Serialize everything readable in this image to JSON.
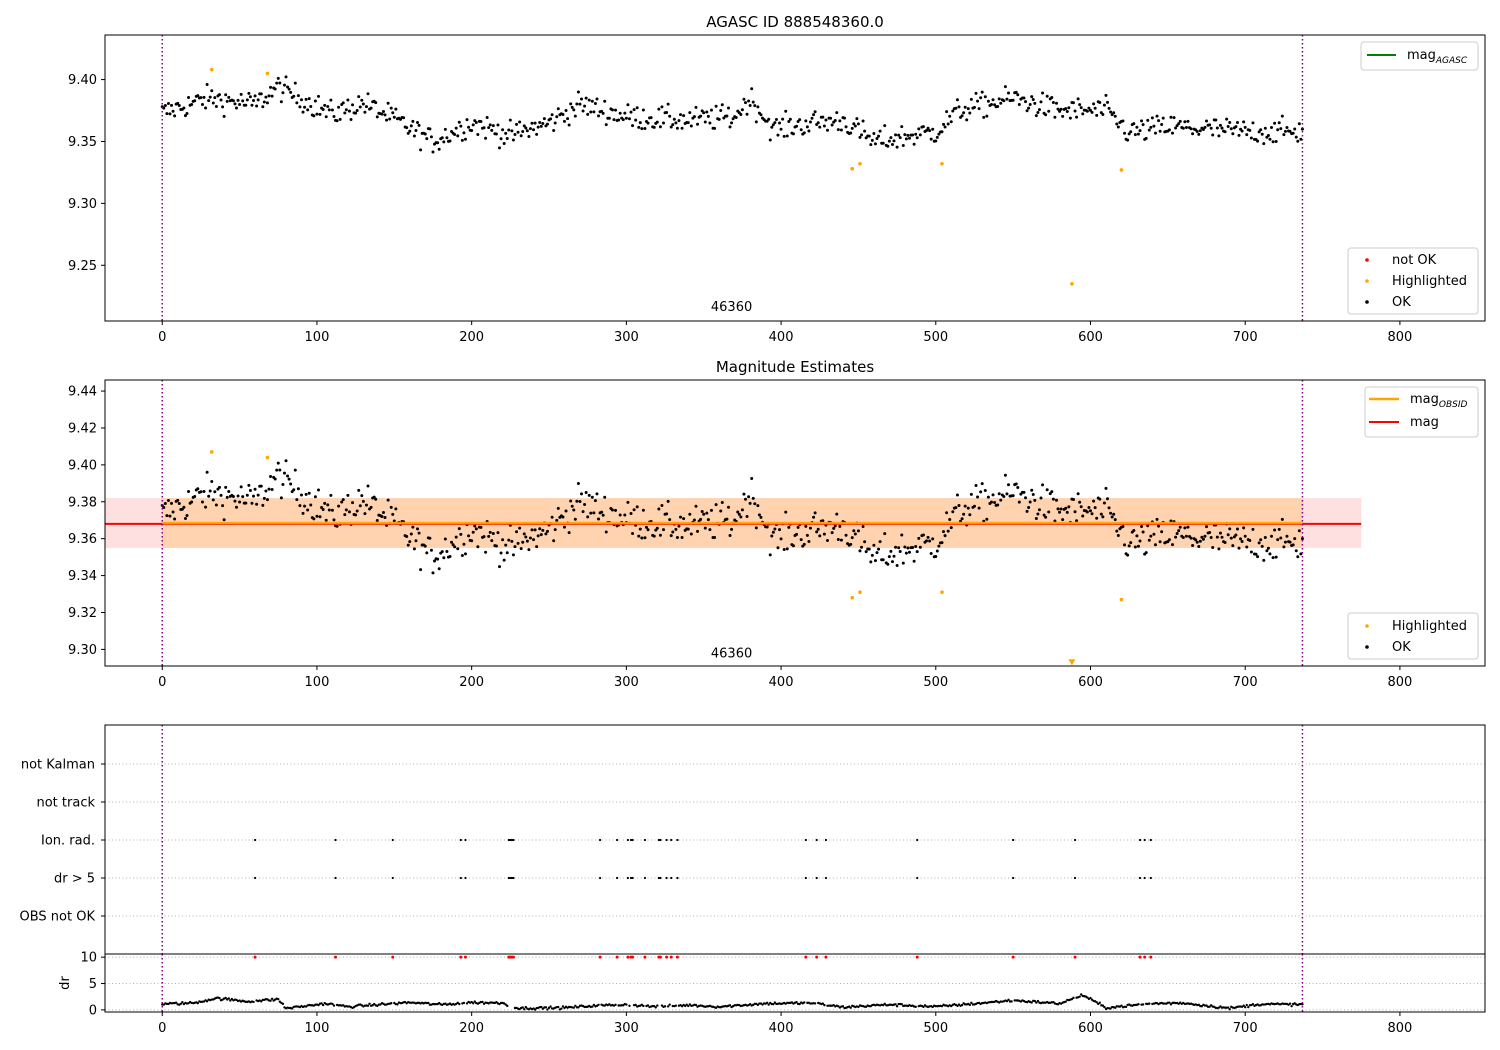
{
  "chart_data": [
    {
      "type": "scatter",
      "title": "AGASC ID 888548360.0",
      "xlim": [
        -37,
        855
      ],
      "ylim": [
        9.205,
        9.436
      ],
      "yticks": [
        9.25,
        9.3,
        9.35,
        9.4
      ],
      "ytick_labels": [
        "9.25",
        "9.30",
        "9.35",
        "9.40"
      ],
      "xticks": [
        0,
        100,
        200,
        300,
        400,
        500,
        600,
        700,
        800
      ],
      "xtick_labels": [
        "0",
        "100",
        "200",
        "300",
        "400",
        "500",
        "600",
        "700",
        "800"
      ],
      "vlines": [
        0,
        737
      ],
      "annotation": {
        "text": "46360",
        "x": 368,
        "y": 9.213
      },
      "legend_lines": [
        {
          "label": "mag",
          "sub": "AGASC",
          "color": "#008000"
        }
      ],
      "legend_points": [
        {
          "label": "not OK",
          "color": "#ff0000"
        },
        {
          "label": "Highlighted",
          "color": "#ffa500"
        },
        {
          "label": "OK",
          "color": "#000000"
        }
      ],
      "highlighted": {
        "x": [
          32,
          68,
          446,
          451,
          504,
          588,
          620
        ],
        "y": [
          9.408,
          9.405,
          9.328,
          9.332,
          9.332,
          9.235,
          9.327
        ]
      },
      "ok_baseline": {
        "knots_x": [
          0,
          30,
          60,
          75,
          110,
          130,
          150,
          175,
          200,
          225,
          250,
          270,
          300,
          340,
          370,
          380,
          395,
          420,
          440,
          460,
          500,
          515,
          550,
          580,
          610,
          625,
          650,
          700,
          737
        ],
        "knots_y": [
          9.373,
          9.385,
          9.38,
          9.394,
          9.372,
          9.381,
          9.368,
          9.35,
          9.365,
          9.355,
          9.365,
          9.38,
          9.37,
          9.367,
          9.37,
          9.385,
          9.36,
          9.365,
          9.367,
          9.35,
          9.358,
          9.375,
          9.385,
          9.375,
          9.375,
          9.357,
          9.362,
          9.358,
          9.358
        ],
        "spread": 0.009
      }
    },
    {
      "type": "scatter",
      "title": "Magnitude Estimates",
      "xlim": [
        -37,
        855
      ],
      "ylim": [
        9.291,
        9.446
      ],
      "yticks": [
        9.3,
        9.32,
        9.34,
        9.36,
        9.38,
        9.4,
        9.42,
        9.44
      ],
      "ytick_labels": [
        "9.30",
        "9.32",
        "9.34",
        "9.36",
        "9.38",
        "9.40",
        "9.42",
        "9.44"
      ],
      "xticks": [
        0,
        100,
        200,
        300,
        400,
        500,
        600,
        700,
        800
      ],
      "xtick_labels": [
        "0",
        "100",
        "200",
        "300",
        "400",
        "500",
        "600",
        "700",
        "800"
      ],
      "vlines": [
        0,
        737
      ],
      "annotation": {
        "text": "46360",
        "x": 368,
        "y": 9.2955
      },
      "mag": {
        "value": 9.368,
        "band": [
          9.355,
          9.382
        ],
        "x": [
          -37,
          775
        ],
        "color": "#ff0000"
      },
      "mag_obsid": {
        "value": 9.3685,
        "band": [
          9.355,
          9.382
        ],
        "x": [
          0,
          737
        ],
        "color": "#ffa500"
      },
      "legend_lines": [
        {
          "label": "mag",
          "sub": "OBSID",
          "color": "#ffa500"
        },
        {
          "label": "mag",
          "sub": "",
          "color": "#ff0000"
        }
      ],
      "legend_points": [
        {
          "label": "Highlighted",
          "color": "#ffa500"
        },
        {
          "label": "OK",
          "color": "#000000"
        }
      ],
      "highlighted": {
        "x": [
          32,
          68,
          446,
          451,
          504,
          620
        ],
        "y": [
          9.407,
          9.404,
          9.328,
          9.331,
          9.331,
          9.327
        ]
      },
      "offscale_marker": {
        "x": 588,
        "y": 9.293
      }
    },
    {
      "type": "scatter",
      "title": "",
      "xlim": [
        -37,
        855
      ],
      "categories": [
        "not Kalman",
        "not track",
        "Ion. rad.",
        "dr > 5",
        "OBS not OK"
      ],
      "flag_times": [
        60,
        112,
        149,
        193,
        196,
        224,
        225,
        226,
        227,
        283,
        294,
        301,
        303,
        304,
        312,
        321,
        322,
        326,
        329,
        333,
        416,
        423,
        429,
        488,
        550,
        590,
        632,
        635,
        639
      ],
      "flag_rows": [
        "Ion. rad.",
        "dr > 5"
      ],
      "vlines": [
        0,
        737
      ]
    },
    {
      "type": "scatter",
      "title": "",
      "ylabel": "dr",
      "xlim": [
        -37,
        855
      ],
      "ylim": [
        -0.4,
        10.6
      ],
      "yticks": [
        0,
        5,
        10
      ],
      "ytick_labels": [
        "0",
        "5",
        "10"
      ],
      "xticks": [
        0,
        100,
        200,
        300,
        400,
        500,
        600,
        700,
        800
      ],
      "xtick_labels": [
        "0",
        "100",
        "200",
        "300",
        "400",
        "500",
        "600",
        "700",
        "800"
      ],
      "vlines": [
        0,
        737
      ],
      "clip_value": 10,
      "clip_color": "#ff0000",
      "dr_curve": {
        "knots_x": [
          0,
          20,
          35,
          55,
          75,
          80,
          95,
          105,
          120,
          140,
          160,
          180,
          200,
          220,
          230,
          260,
          280,
          300,
          320,
          340,
          360,
          390,
          420,
          440,
          470,
          500,
          530,
          550,
          580,
          595,
          610,
          640,
          660,
          690,
          710,
          737
        ],
        "knots_y": [
          1.1,
          1.3,
          2.2,
          1.6,
          2.0,
          0.3,
          0.8,
          1.2,
          0.6,
          1.0,
          1.4,
          1.0,
          1.4,
          1.3,
          0.3,
          0.4,
          0.8,
          1.0,
          0.6,
          0.9,
          0.6,
          1.2,
          1.3,
          0.5,
          1.0,
          0.6,
          1.3,
          1.8,
          1.2,
          2.8,
          0.4,
          1.2,
          1.3,
          0.3,
          1.1,
          1.0
        ]
      }
    }
  ]
}
